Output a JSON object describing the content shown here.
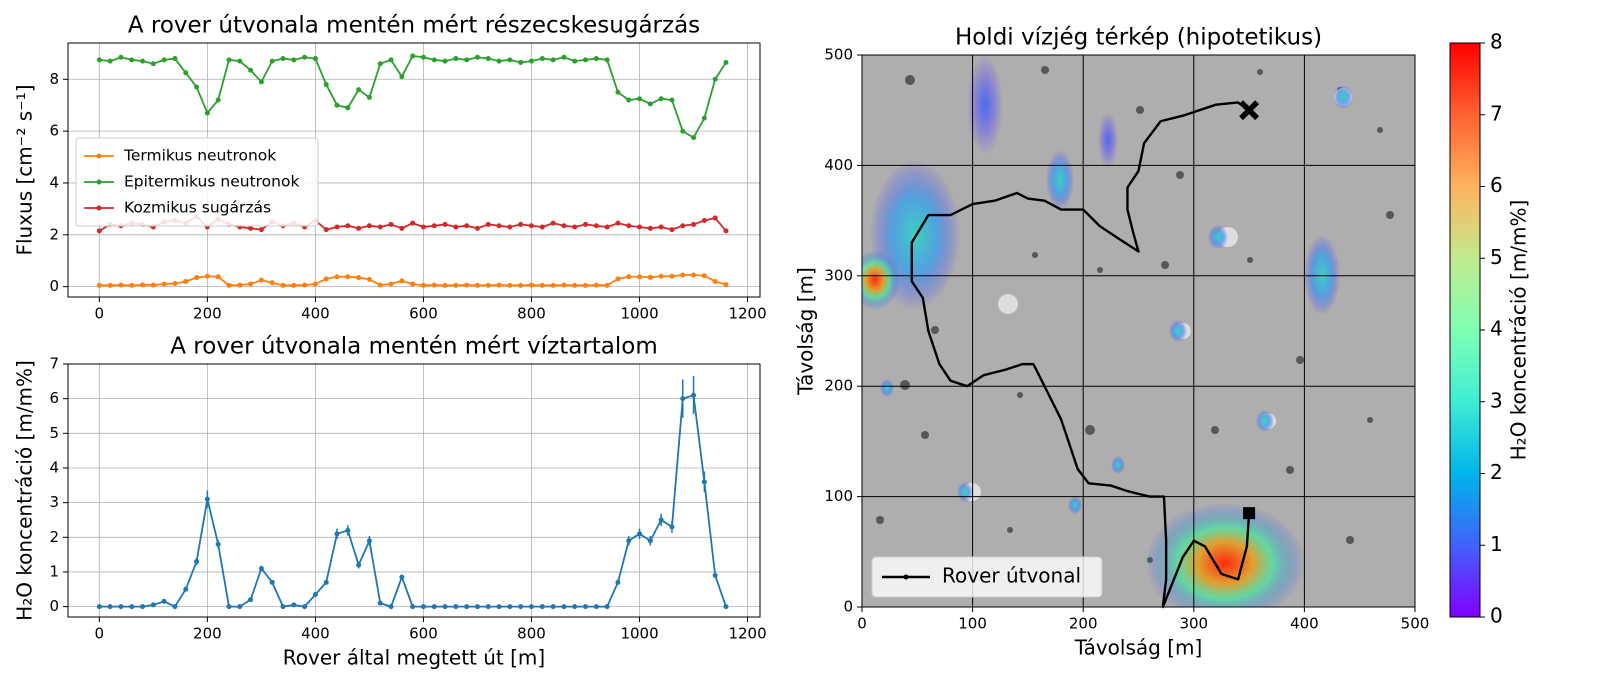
{
  "chart_data": [
    {
      "type": "line",
      "title": "A rover útvonala mentén mért részecskesugárzás",
      "y_label": "Fluxus [cm⁻² s⁻¹]",
      "x": [
        0,
        20,
        40,
        60,
        80,
        100,
        120,
        140,
        160,
        180,
        200,
        220,
        240,
        260,
        280,
        300,
        320,
        340,
        360,
        380,
        400,
        420,
        440,
        460,
        480,
        500,
        520,
        540,
        560,
        580,
        600,
        620,
        640,
        660,
        680,
        700,
        720,
        740,
        760,
        780,
        800,
        820,
        840,
        860,
        880,
        900,
        920,
        940,
        960,
        980,
        1000,
        1020,
        1040,
        1060,
        1080,
        1100,
        1120,
        1140,
        1160
      ],
      "series": [
        {
          "name": "Termikus neutronok",
          "color": "#ff7f0e",
          "values": [
            0.05,
            0.05,
            0.06,
            0.05,
            0.07,
            0.06,
            0.1,
            0.12,
            0.2,
            0.35,
            0.4,
            0.38,
            0.05,
            0.06,
            0.1,
            0.25,
            0.15,
            0.05,
            0.05,
            0.06,
            0.1,
            0.3,
            0.38,
            0.38,
            0.35,
            0.28,
            0.06,
            0.1,
            0.22,
            0.1,
            0.05,
            0.06,
            0.05,
            0.05,
            0.06,
            0.05,
            0.05,
            0.06,
            0.05,
            0.05,
            0.06,
            0.05,
            0.05,
            0.06,
            0.05,
            0.05,
            0.06,
            0.05,
            0.3,
            0.38,
            0.38,
            0.36,
            0.4,
            0.4,
            0.45,
            0.45,
            0.42,
            0.2,
            0.08
          ]
        },
        {
          "name": "Epitermikus neutronok",
          "color": "#2ca02c",
          "values": [
            8.75,
            8.7,
            8.85,
            8.75,
            8.7,
            8.6,
            8.75,
            8.8,
            8.25,
            7.7,
            6.7,
            7.2,
            8.75,
            8.7,
            8.35,
            7.9,
            8.7,
            8.8,
            8.75,
            8.85,
            8.8,
            7.8,
            7.0,
            6.9,
            7.6,
            7.3,
            8.6,
            8.75,
            8.1,
            8.9,
            8.85,
            8.75,
            8.7,
            8.8,
            8.75,
            8.85,
            8.8,
            8.7,
            8.75,
            8.65,
            8.7,
            8.8,
            8.75,
            8.85,
            8.7,
            8.75,
            8.8,
            8.75,
            7.5,
            7.2,
            7.25,
            7.05,
            7.25,
            7.2,
            6.0,
            5.75,
            6.5,
            8.0,
            8.65
          ]
        },
        {
          "name": "Kozmikus sugárzás",
          "color": "#d62728",
          "values": [
            2.15,
            2.4,
            2.35,
            2.45,
            2.4,
            2.3,
            2.5,
            2.55,
            2.45,
            2.7,
            2.3,
            2.6,
            2.4,
            2.3,
            2.25,
            2.2,
            2.5,
            2.35,
            2.45,
            2.3,
            2.55,
            2.2,
            2.3,
            2.35,
            2.25,
            2.35,
            2.3,
            2.4,
            2.25,
            2.45,
            2.3,
            2.35,
            2.4,
            2.3,
            2.35,
            2.25,
            2.4,
            2.35,
            2.3,
            2.4,
            2.35,
            2.3,
            2.45,
            2.35,
            2.3,
            2.4,
            2.35,
            2.3,
            2.45,
            2.35,
            2.3,
            2.25,
            2.3,
            2.2,
            2.35,
            2.4,
            2.55,
            2.65,
            2.15
          ]
        }
      ],
      "xlim": [
        -58,
        1223
      ],
      "xticks": [
        0,
        200,
        400,
        600,
        800,
        1000,
        1200
      ],
      "ylim": [
        -0.4,
        9.4
      ],
      "yticks": [
        0,
        2,
        4,
        6,
        8
      ],
      "grid": true,
      "legend": "center left"
    },
    {
      "type": "line",
      "title": "A rover útvonala mentén mért víztartalom",
      "x_label": "Rover által megtett út [m]",
      "y_label": "H₂O koncentráció [m/m%]",
      "x": [
        0,
        20,
        40,
        60,
        80,
        100,
        120,
        140,
        160,
        180,
        200,
        220,
        240,
        260,
        280,
        300,
        320,
        340,
        360,
        380,
        400,
        420,
        440,
        460,
        480,
        500,
        520,
        540,
        560,
        580,
        600,
        620,
        640,
        660,
        680,
        700,
        720,
        740,
        760,
        780,
        800,
        820,
        840,
        860,
        880,
        900,
        920,
        940,
        960,
        980,
        1000,
        1020,
        1040,
        1060,
        1080,
        1100,
        1120,
        1140,
        1160
      ],
      "series": [
        {
          "color": "#1f77b4",
          "values": [
            0,
            0,
            0,
            0,
            0,
            0.05,
            0.15,
            0,
            0.5,
            1.3,
            3.1,
            1.8,
            0,
            0,
            0.2,
            1.1,
            0.7,
            0,
            0.05,
            0,
            0.35,
            0.7,
            2.1,
            2.2,
            1.2,
            1.9,
            0.1,
            0,
            0.85,
            0,
            0,
            0,
            0,
            0,
            0,
            0,
            0,
            0,
            0,
            0,
            0,
            0,
            0,
            0,
            0,
            0,
            0,
            0,
            0.7,
            1.9,
            2.1,
            1.9,
            2.5,
            2.3,
            6.0,
            6.1,
            3.6,
            0.9,
            0
          ],
          "errors": [
            0.02,
            0.02,
            0.02,
            0.02,
            0.02,
            0.02,
            0.03,
            0.02,
            0.05,
            0.1,
            0.25,
            0.12,
            0.02,
            0.02,
            0.03,
            0.08,
            0.05,
            0.02,
            0.02,
            0.02,
            0.04,
            0.05,
            0.15,
            0.15,
            0.1,
            0.14,
            0.02,
            0.02,
            0.06,
            0.02,
            0.02,
            0.02,
            0.02,
            0.02,
            0.02,
            0.02,
            0.02,
            0.02,
            0.02,
            0.02,
            0.02,
            0.02,
            0.02,
            0.02,
            0.02,
            0.02,
            0.02,
            0.02,
            0.05,
            0.14,
            0.15,
            0.14,
            0.18,
            0.17,
            0.55,
            0.55,
            0.3,
            0.07,
            0.02
          ]
        }
      ],
      "xlim": [
        -58,
        1223
      ],
      "xticks": [
        0,
        200,
        400,
        600,
        800,
        1000,
        1200
      ],
      "ylim": [
        -0.3,
        7
      ],
      "yticks": [
        0,
        1,
        2,
        3,
        4,
        5,
        6,
        7
      ],
      "grid": true
    },
    {
      "type": "map",
      "title": "Holdi vízjég térkép (hipotetikus)",
      "x_label": "Távolság [m]",
      "y_label": "Távolság [m]",
      "path_name": "Rover útvonal",
      "path_color": "#000000",
      "path_x": [
        350,
        348,
        340,
        325,
        310,
        300,
        290,
        280,
        272,
        275,
        275,
        273,
        260,
        240,
        225,
        205,
        195,
        185,
        180,
        170,
        155,
        145,
        130,
        110,
        95,
        80,
        70,
        60,
        55,
        45,
        45,
        60,
        80,
        100,
        120,
        140,
        150,
        165,
        180,
        200,
        215,
        230,
        250,
        245,
        240,
        240,
        250,
        255,
        270,
        290,
        320,
        340,
        350
      ],
      "path_y": [
        85,
        55,
        25,
        30,
        55,
        60,
        45,
        20,
        0,
        25,
        60,
        100,
        100,
        105,
        110,
        112,
        125,
        155,
        170,
        190,
        220,
        220,
        215,
        210,
        200,
        205,
        220,
        250,
        280,
        295,
        330,
        355,
        355,
        365,
        368,
        375,
        370,
        368,
        360,
        360,
        345,
        335,
        322,
        340,
        360,
        380,
        395,
        420,
        440,
        445,
        455,
        457,
        450
      ],
      "xlim": [
        0,
        500
      ],
      "xticks": [
        0,
        100,
        200,
        300,
        400,
        500
      ],
      "ylim": [
        0,
        500
      ],
      "yticks": [
        0,
        100,
        200,
        300,
        400,
        500
      ],
      "grid": true,
      "legend": "lower left",
      "colorbar": {
        "label": "H₂O koncentráció [m/m%]",
        "lim": [
          0,
          8
        ],
        "ticks": [
          0,
          1,
          2,
          3,
          4,
          5,
          6,
          7,
          8
        ],
        "colormap": "rainbow"
      }
    }
  ]
}
